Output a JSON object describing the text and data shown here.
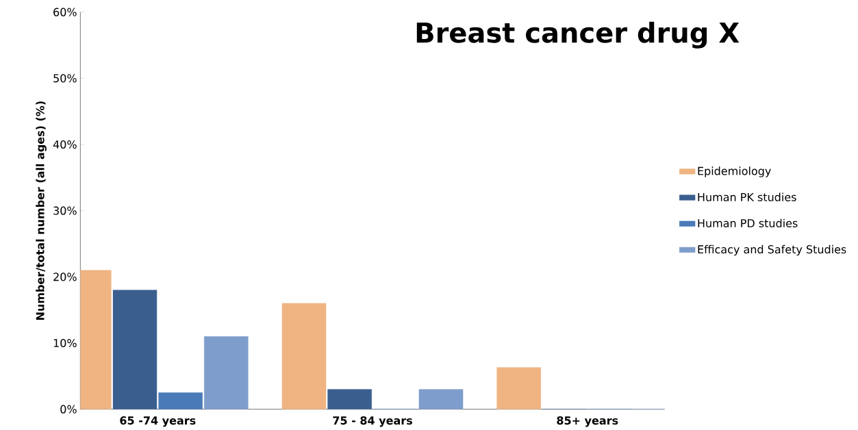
{
  "chart_data": {
    "type": "bar",
    "title": "Breast cancer drug X",
    "ylabel": "Number/total number (all ages) (%)",
    "categories": [
      "65 -74 years",
      "75 - 84 years",
      "85+ years"
    ],
    "series": [
      {
        "name": "Epidemiology",
        "color": "#f0b482",
        "values": [
          21,
          16,
          6.3
        ]
      },
      {
        "name": "Human PK studies",
        "color": "#3a5f8f",
        "values": [
          18,
          3,
          0
        ]
      },
      {
        "name": "Human PD studies",
        "color": "#4a7ab8",
        "values": [
          2.5,
          0,
          0
        ]
      },
      {
        "name": "Efficacy and Safety Studies",
        "color": "#7f9dcc",
        "values": [
          11,
          3,
          0
        ]
      }
    ],
    "ylim": [
      0,
      60
    ],
    "yticks": [
      {
        "value": 0,
        "label": "0%"
      },
      {
        "value": 10,
        "label": "10%"
      },
      {
        "value": 20,
        "label": "20%"
      },
      {
        "value": 30,
        "label": "30%"
      },
      {
        "value": 40,
        "label": "40%"
      },
      {
        "value": 50,
        "label": "50%"
      },
      {
        "value": 60,
        "label": "60%"
      }
    ],
    "grid": false,
    "legend": "right"
  }
}
